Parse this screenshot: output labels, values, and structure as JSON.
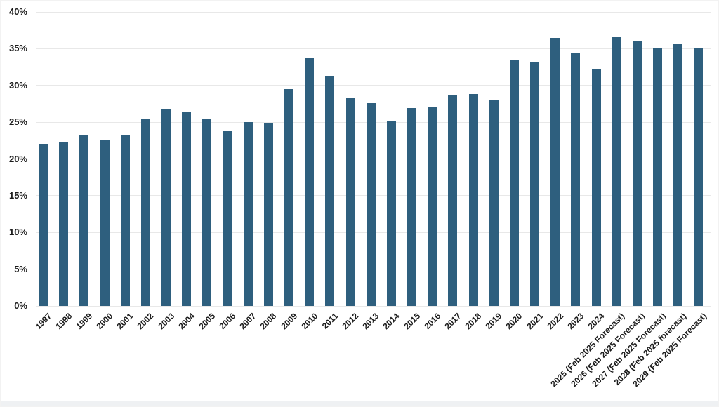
{
  "chart_data": {
    "type": "bar",
    "title": "",
    "xlabel": "",
    "ylabel": "",
    "ylim": [
      0,
      40
    ],
    "ytick_step": 5,
    "ytick_labels": [
      "0%",
      "5%",
      "10%",
      "15%",
      "20%",
      "25%",
      "30%",
      "35%",
      "40%"
    ],
    "grid": true,
    "legend_position": "none",
    "bar_color": "#2e5f7e",
    "gridline_color": "#e8e8e8",
    "label_color": "#1a1a1a",
    "categories": [
      "1997",
      "1998",
      "1999",
      "2000",
      "2001",
      "2002",
      "2003",
      "2004",
      "2005",
      "2006",
      "2007",
      "2008",
      "2009",
      "2010",
      "2011",
      "2012",
      "2013",
      "2014",
      "2015",
      "2016",
      "2017",
      "2018",
      "2019",
      "2020",
      "2021",
      "2022",
      "2023",
      "2024",
      "2025 (Feb 2025 Forecast)",
      "2026 (Feb 2025 Forecast)",
      "2027 (Feb 2025 Forecast)",
      "2028 (Feb 2025 forecast)",
      "2029 (Feb 2025 Forecast)"
    ],
    "values": [
      22.1,
      22.2,
      23.3,
      22.6,
      23.3,
      25.4,
      26.8,
      26.4,
      25.4,
      23.9,
      25.0,
      24.9,
      29.5,
      33.8,
      31.2,
      28.4,
      27.6,
      25.2,
      26.9,
      27.1,
      28.6,
      28.8,
      28.1,
      33.4,
      33.1,
      36.5,
      34.4,
      32.2,
      36.6,
      36.0,
      35.0,
      35.6,
      35.1
    ]
  }
}
